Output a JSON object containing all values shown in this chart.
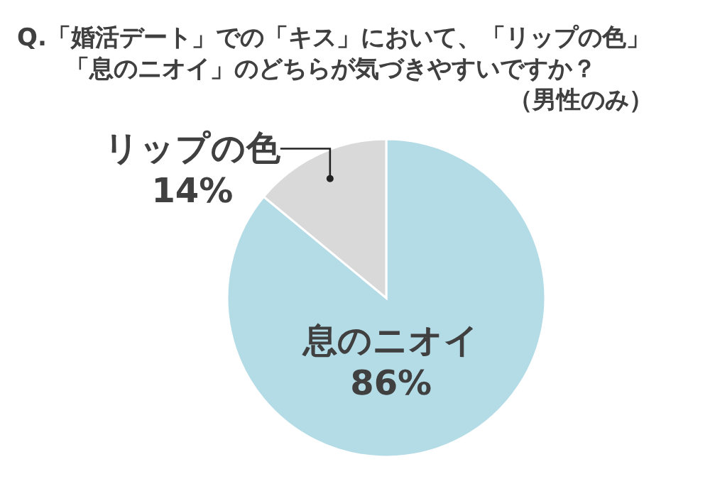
{
  "chart_data": {
    "type": "pie",
    "title": "Q.「婚活デート」での「キス」において、「リップの色」「息のニオイ」のどちらが気づきやすいですか？",
    "subtitle": "（男性のみ）",
    "categories": [
      "息のニオイ",
      "リップの色"
    ],
    "values": [
      86,
      14
    ],
    "value_labels": [
      "86%",
      "14%"
    ],
    "colors": [
      "#b4dce6",
      "#d9d9d9"
    ]
  }
}
